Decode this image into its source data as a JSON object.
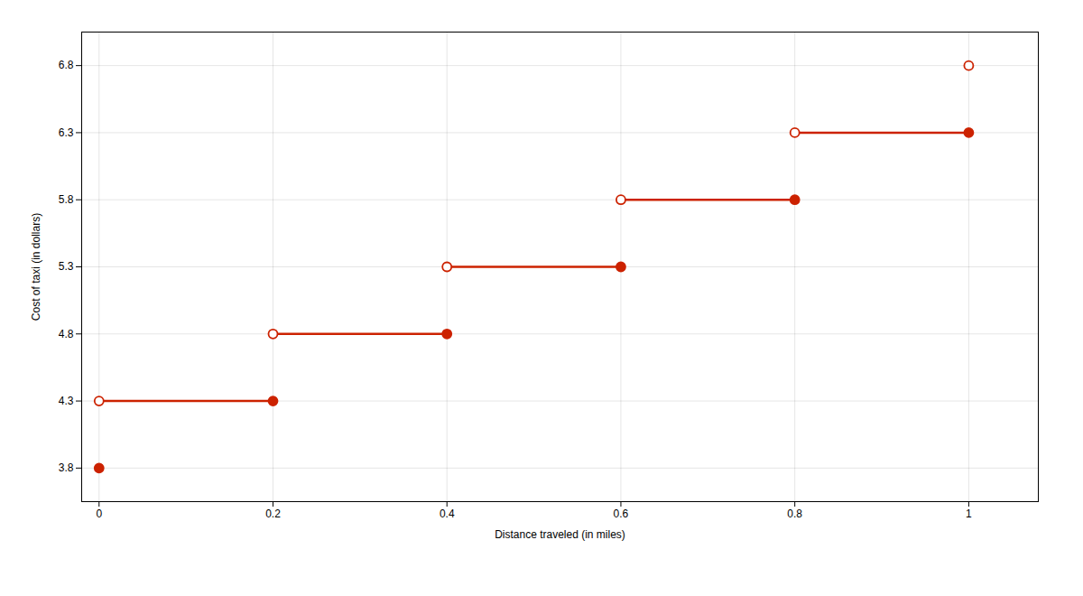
{
  "chart_data": {
    "type": "step",
    "xlabel": "Distance traveled (in miles)",
    "ylabel": "Cost of taxi (in dollars)",
    "color": "#cc2200",
    "xlim": [
      -0.02,
      1.08
    ],
    "ylim": [
      3.55,
      7.05
    ],
    "xticks": [
      0,
      0.2,
      0.4,
      0.6,
      0.8,
      1
    ],
    "yticks": [
      3.8,
      4.3,
      4.8,
      5.3,
      5.8,
      6.3,
      6.8
    ],
    "grid": true,
    "steps": [
      {
        "x_start": 0.0,
        "x_end": 0.0,
        "y": 3.8,
        "open_left": false,
        "open_right": false
      },
      {
        "x_start": 0.0,
        "x_end": 0.2,
        "y": 4.3,
        "open_left": true,
        "open_right": false
      },
      {
        "x_start": 0.2,
        "x_end": 0.4,
        "y": 4.8,
        "open_left": true,
        "open_right": false
      },
      {
        "x_start": 0.4,
        "x_end": 0.6,
        "y": 5.3,
        "open_left": true,
        "open_right": false
      },
      {
        "x_start": 0.6,
        "x_end": 0.8,
        "y": 5.8,
        "open_left": true,
        "open_right": false
      },
      {
        "x_start": 0.8,
        "x_end": 1.0,
        "y": 6.3,
        "open_left": true,
        "open_right": false
      },
      {
        "x_start": 1.0,
        "x_end": 1.0,
        "y": 6.8,
        "open_left": true,
        "open_right": false
      }
    ]
  }
}
